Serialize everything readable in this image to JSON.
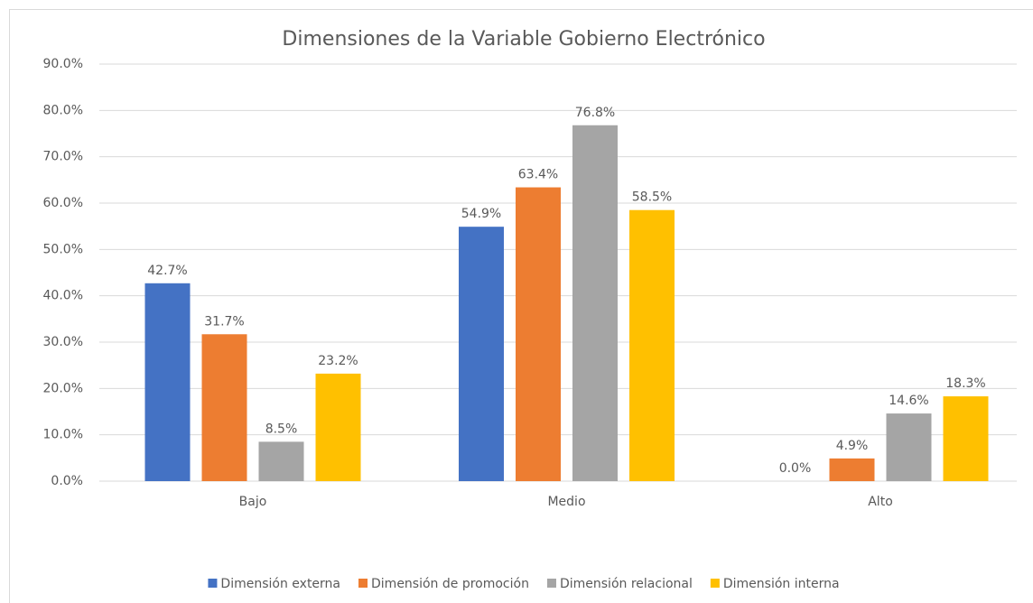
{
  "chart_data": {
    "type": "bar",
    "title": "Dimensiones de la Variable Gobierno Electrónico",
    "categories": [
      "Bajo",
      "Medio",
      "Alto"
    ],
    "series": [
      {
        "name": "Dimensión externa",
        "color": "#4472c4",
        "values": [
          42.7,
          54.9,
          0.0
        ],
        "value_labels": [
          "42.7%",
          "54.9%",
          "0.0%"
        ]
      },
      {
        "name": "Dimensión de promoción",
        "color": "#ed7d31",
        "values": [
          31.7,
          63.4,
          4.9
        ],
        "value_labels": [
          "31.7%",
          "63.4%",
          "4.9%"
        ]
      },
      {
        "name": "Dimensión relacional",
        "color": "#a5a5a5",
        "values": [
          8.5,
          76.8,
          14.6
        ],
        "value_labels": [
          "8.5%",
          "76.8%",
          "14.6%"
        ]
      },
      {
        "name": "Dimensión interna",
        "color": "#ffc000",
        "values": [
          23.2,
          58.5,
          18.3
        ],
        "value_labels": [
          "23.2%",
          "58.5%",
          "18.3%"
        ]
      }
    ],
    "ylim": [
      0,
      90
    ],
    "yticks": [
      {
        "value": 0,
        "label": "0.0%"
      },
      {
        "value": 10,
        "label": "10.0%"
      },
      {
        "value": 20,
        "label": "20.0%"
      },
      {
        "value": 30,
        "label": "30.0%"
      },
      {
        "value": 40,
        "label": "40.0%"
      },
      {
        "value": 50,
        "label": "50.0%"
      },
      {
        "value": 60,
        "label": "60.0%"
      },
      {
        "value": 70,
        "label": "70.0%"
      },
      {
        "value": 80,
        "label": "80.0%"
      },
      {
        "value": 90,
        "label": "90.0%"
      }
    ],
    "grid": true,
    "legend": "bottom"
  }
}
